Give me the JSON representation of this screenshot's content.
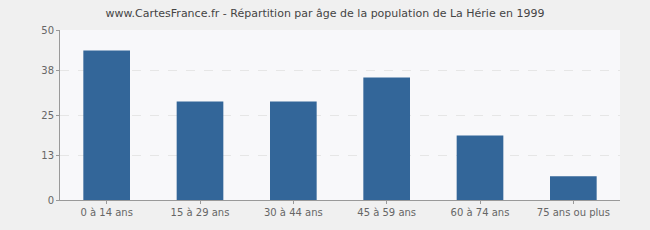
{
  "chart_data": {
    "type": "bar",
    "title": "www.CartesFrance.fr - Répartition par âge de la population de La Hérie en 1999",
    "categories": [
      "0 à 14 ans",
      "15 à 29 ans",
      "30 à 44 ans",
      "45 à 59 ans",
      "60 à 74 ans",
      "75 ans ou plus"
    ],
    "values": [
      44,
      29,
      29,
      36,
      19,
      7
    ],
    "color": "#336699",
    "ylim": [
      0,
      50
    ],
    "yticks": [
      0,
      13,
      25,
      38,
      50
    ],
    "grid": true
  }
}
